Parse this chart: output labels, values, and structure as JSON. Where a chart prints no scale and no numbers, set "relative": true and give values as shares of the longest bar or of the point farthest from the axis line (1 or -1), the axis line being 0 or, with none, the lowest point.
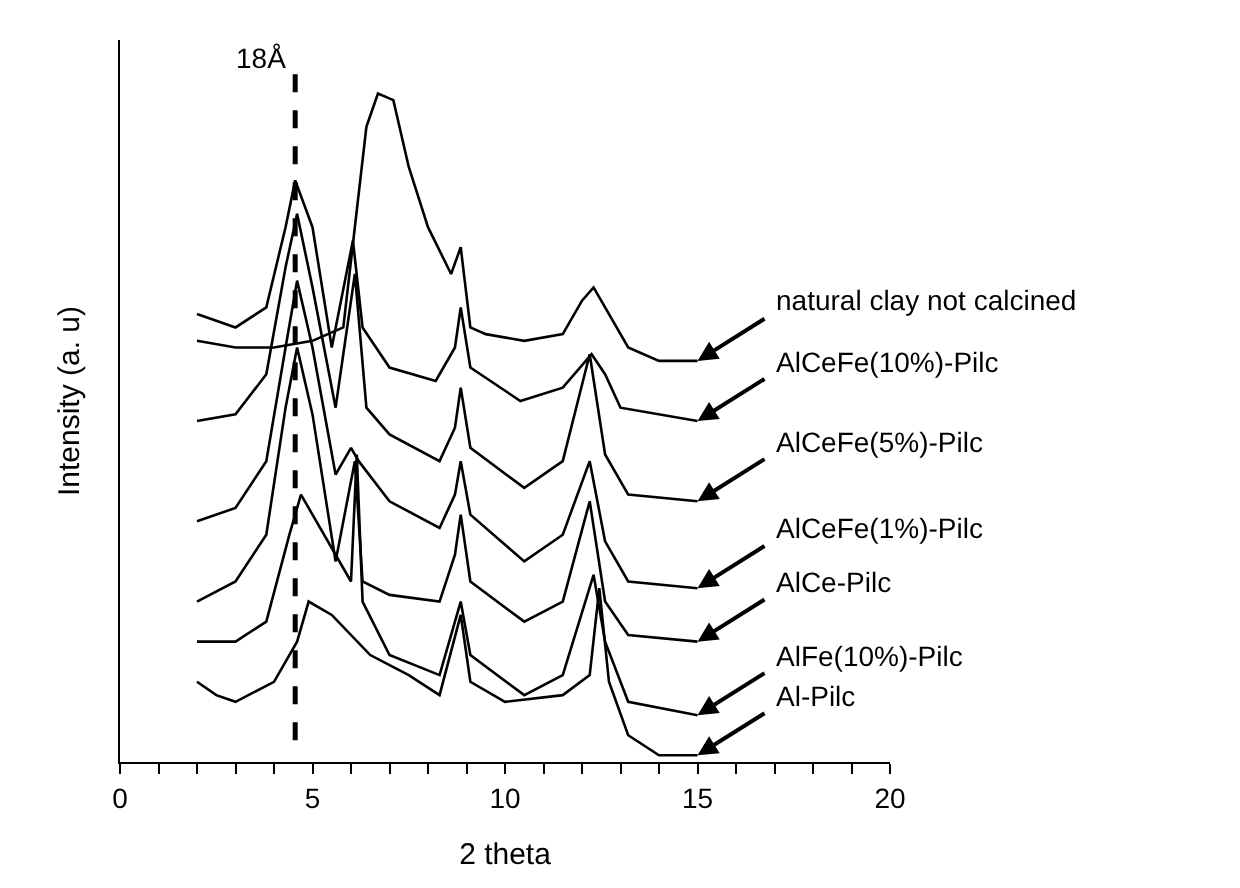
{
  "chart_data": {
    "type": "line",
    "relative": true,
    "xlabel": "2 theta",
    "ylabel": "Intensity (a. u)",
    "xlim": [
      0,
      20
    ],
    "xticks": [
      0,
      {
        "value": 1,
        "label": null
      },
      {
        "value": 2,
        "label": null
      },
      {
        "value": 3,
        "label": null
      },
      {
        "value": 4,
        "label": null
      },
      5,
      {
        "value": 6,
        "label": null
      },
      {
        "value": 7,
        "label": null
      },
      {
        "value": 8,
        "label": null
      },
      {
        "value": 9,
        "label": null
      },
      10,
      {
        "value": 11,
        "label": null
      },
      {
        "value": 12,
        "label": null
      },
      {
        "value": 13,
        "label": null
      },
      {
        "value": 14,
        "label": null
      },
      15,
      {
        "value": 16,
        "label": null
      },
      {
        "value": 17,
        "label": null
      },
      {
        "value": 18,
        "label": null
      },
      {
        "value": 19,
        "label": null
      },
      20
    ],
    "marker": "none",
    "line_style": "solid",
    "ref_lines": [
      {
        "axis": "x",
        "value": 4.55,
        "label": "18Å",
        "color": "#000000",
        "line_style": "dashed"
      }
    ],
    "series": [
      {
        "color": "#000000",
        "x": [
          2,
          3,
          4,
          5,
          5.8,
          6.4,
          6.7,
          7.1,
          7.5,
          8,
          8.6,
          8.85,
          9.1,
          9.5,
          10.5,
          11.5,
          12,
          12.3,
          12.6,
          13.2,
          14,
          15
        ],
        "values": [
          0.63,
          0.62,
          0.62,
          0.63,
          0.65,
          0.95,
          1.0,
          0.99,
          0.89,
          0.8,
          0.73,
          0.77,
          0.65,
          0.64,
          0.63,
          0.64,
          0.69,
          0.71,
          0.68,
          0.62,
          0.6,
          0.6
        ]
      },
      {
        "color": "#000000",
        "x": [
          2,
          3,
          3.8,
          4.3,
          4.55,
          5,
          5.5,
          6.05,
          6.3,
          7,
          8.2,
          8.7,
          8.85,
          9.1,
          10.4,
          11.5,
          12.25,
          12.6,
          13,
          15
        ],
        "values": [
          0.67,
          0.65,
          0.68,
          0.8,
          0.87,
          0.8,
          0.62,
          0.78,
          0.65,
          0.59,
          0.57,
          0.62,
          0.68,
          0.59,
          0.54,
          0.56,
          0.61,
          0.58,
          0.53,
          0.51
        ]
      },
      {
        "color": "#000000",
        "x": [
          2,
          3,
          3.8,
          4.3,
          4.6,
          5,
          5.6,
          6.1,
          6.4,
          7,
          8.3,
          8.7,
          8.85,
          9.1,
          10.5,
          11.5,
          12.2,
          12.6,
          13.2,
          15
        ],
        "values": [
          0.51,
          0.52,
          0.58,
          0.74,
          0.82,
          0.71,
          0.53,
          0.73,
          0.53,
          0.49,
          0.45,
          0.5,
          0.56,
          0.47,
          0.41,
          0.45,
          0.61,
          0.46,
          0.4,
          0.39
        ]
      },
      {
        "color": "#000000",
        "x": [
          2,
          3,
          3.8,
          4.3,
          4.6,
          5,
          5.6,
          6,
          6.2,
          7,
          8.3,
          8.7,
          8.85,
          9.1,
          10.5,
          11.5,
          12.2,
          12.6,
          13.2,
          15
        ],
        "values": [
          0.36,
          0.38,
          0.45,
          0.62,
          0.72,
          0.62,
          0.43,
          0.47,
          0.45,
          0.39,
          0.35,
          0.4,
          0.45,
          0.37,
          0.3,
          0.34,
          0.45,
          0.33,
          0.27,
          0.26
        ]
      },
      {
        "color": "#000000",
        "x": [
          2,
          3,
          3.8,
          4.3,
          4.6,
          5,
          5.6,
          6.1,
          6.3,
          7,
          8.3,
          8.7,
          8.85,
          9.1,
          10.5,
          11.5,
          12.2,
          12.6,
          13.2,
          15
        ],
        "values": [
          0.24,
          0.27,
          0.34,
          0.53,
          0.62,
          0.52,
          0.3,
          0.45,
          0.27,
          0.25,
          0.24,
          0.31,
          0.37,
          0.27,
          0.21,
          0.24,
          0.39,
          0.24,
          0.19,
          0.18
        ]
      },
      {
        "color": "#000000",
        "x": [
          2,
          3,
          3.8,
          4.4,
          4.7,
          5,
          6,
          6.15,
          6.3,
          7,
          8.3,
          8.7,
          8.85,
          9.1,
          10.5,
          11.5,
          12.3,
          12.6,
          13.2,
          15
        ],
        "values": [
          0.18,
          0.18,
          0.21,
          0.34,
          0.4,
          0.37,
          0.27,
          0.46,
          0.24,
          0.16,
          0.13,
          0.21,
          0.24,
          0.16,
          0.1,
          0.13,
          0.28,
          0.18,
          0.09,
          0.07
        ]
      },
      {
        "color": "#000000",
        "x": [
          2,
          2.5,
          3,
          4,
          4.6,
          4.9,
          5.5,
          6.5,
          7.5,
          8.3,
          8.85,
          9.1,
          10,
          11.5,
          12.2,
          12.45,
          12.7,
          13.2,
          14,
          15
        ],
        "values": [
          0.12,
          0.1,
          0.09,
          0.12,
          0.18,
          0.24,
          0.22,
          0.16,
          0.13,
          0.1,
          0.22,
          0.12,
          0.09,
          0.1,
          0.13,
          0.26,
          0.12,
          0.04,
          0.01,
          0.01
        ]
      }
    ],
    "annotations": [
      "natural clay not calcined",
      "AlCeFe(10%)-Pilc",
      "AlCeFe(5%)-Pilc",
      "AlCeFe(1%)-Pilc",
      "AlCe-Pilc",
      "AlFe(10%)-Pilc",
      "Al-Pilc"
    ]
  }
}
